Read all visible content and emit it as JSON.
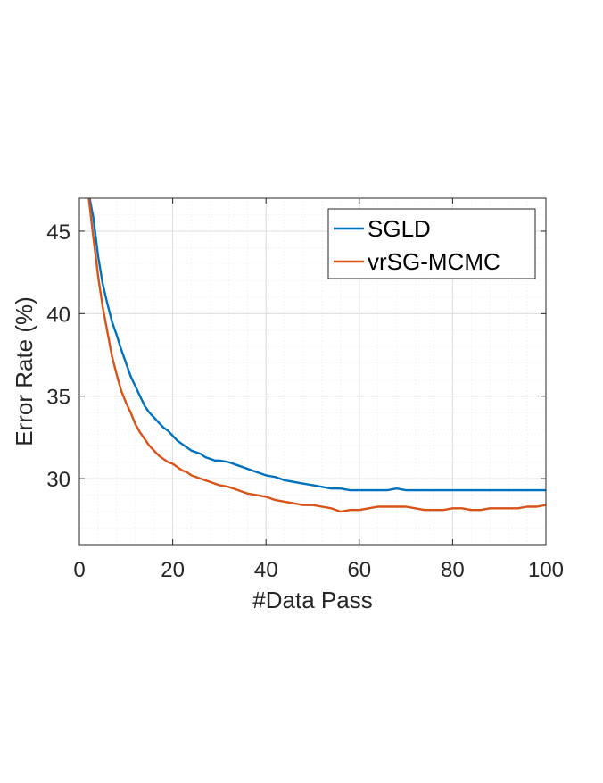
{
  "chart_data": {
    "type": "line",
    "title": "",
    "xlabel": "#Data Pass",
    "ylabel": "Error Rate (%)",
    "xlim": [
      0,
      100
    ],
    "ylim": [
      26,
      47
    ],
    "xticks": [
      0,
      20,
      40,
      60,
      80,
      100
    ],
    "yticks": [
      30,
      35,
      40,
      45
    ],
    "grid": true,
    "minor_grid": true,
    "legend_position": "top-right",
    "series": [
      {
        "name": "SGLD",
        "color": "#0072BD",
        "x": [
          2.2,
          3,
          4,
          5,
          6,
          7,
          8,
          9,
          10,
          11,
          12,
          13,
          14,
          15,
          16,
          17,
          18,
          19,
          20,
          21,
          22,
          23,
          24,
          25,
          26,
          27,
          28,
          29,
          30,
          32,
          34,
          36,
          38,
          40,
          42,
          44,
          46,
          48,
          50,
          52,
          54,
          56,
          58,
          60,
          62,
          64,
          66,
          68,
          70,
          72,
          74,
          76,
          78,
          80,
          82,
          84,
          86,
          88,
          90,
          92,
          94,
          96,
          98,
          100
        ],
        "values": [
          47,
          45.8,
          43.5,
          41.8,
          40.6,
          39.5,
          38.7,
          37.8,
          37.0,
          36.2,
          35.6,
          35.0,
          34.4,
          34.0,
          33.7,
          33.4,
          33.1,
          32.9,
          32.6,
          32.3,
          32.1,
          31.9,
          31.7,
          31.6,
          31.5,
          31.3,
          31.2,
          31.1,
          31.1,
          31.0,
          30.8,
          30.6,
          30.4,
          30.2,
          30.1,
          29.9,
          29.8,
          29.7,
          29.6,
          29.5,
          29.4,
          29.4,
          29.3,
          29.3,
          29.3,
          29.3,
          29.3,
          29.4,
          29.3,
          29.3,
          29.3,
          29.3,
          29.3,
          29.3,
          29.3,
          29.3,
          29.3,
          29.3,
          29.3,
          29.3,
          29.3,
          29.3,
          29.3,
          29.3
        ]
      },
      {
        "name": "vrSG-MCMC",
        "color": "#D95319",
        "x": [
          2.0,
          3,
          4,
          5,
          6,
          7,
          8,
          9,
          10,
          11,
          12,
          13,
          14,
          15,
          16,
          17,
          18,
          19,
          20,
          21,
          22,
          23,
          24,
          25,
          26,
          27,
          28,
          29,
          30,
          32,
          34,
          36,
          38,
          40,
          42,
          44,
          46,
          48,
          50,
          52,
          54,
          56,
          58,
          60,
          62,
          64,
          66,
          68,
          70,
          72,
          74,
          76,
          78,
          80,
          82,
          84,
          86,
          88,
          90,
          92,
          94,
          96,
          98,
          100
        ],
        "values": [
          47,
          44.6,
          42.3,
          40.4,
          38.9,
          37.4,
          36.3,
          35.3,
          34.6,
          34.0,
          33.3,
          32.8,
          32.4,
          32.0,
          31.7,
          31.4,
          31.2,
          31.0,
          30.9,
          30.7,
          30.5,
          30.4,
          30.2,
          30.1,
          30.0,
          29.9,
          29.8,
          29.7,
          29.6,
          29.5,
          29.3,
          29.1,
          29.0,
          28.9,
          28.7,
          28.6,
          28.5,
          28.4,
          28.4,
          28.3,
          28.2,
          28.0,
          28.1,
          28.1,
          28.2,
          28.3,
          28.3,
          28.3,
          28.3,
          28.2,
          28.1,
          28.1,
          28.1,
          28.2,
          28.2,
          28.1,
          28.1,
          28.2,
          28.2,
          28.2,
          28.2,
          28.3,
          28.3,
          28.4
        ]
      }
    ]
  }
}
